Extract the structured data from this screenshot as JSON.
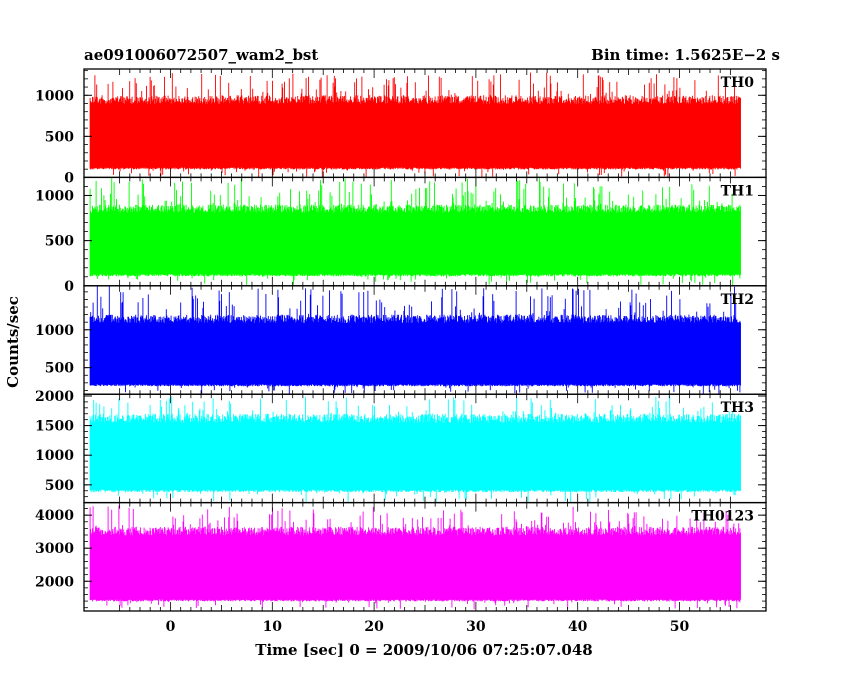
{
  "header": {
    "title": "ae091006072507_wam2_bst",
    "bin_time": "Bin time: 1.5625E−2 s"
  },
  "chart_data": {
    "type": "line",
    "xlabel": "Time [sec] 0 = 2009/10/06 07:25:07.048",
    "ylabel": "Counts/sec",
    "xlim": [
      -8.5,
      58.5
    ],
    "data_range_x": [
      -7.9,
      56.0
    ],
    "bin_time_s": 0.015625,
    "x_ticks": [
      0,
      10,
      20,
      30,
      40,
      50
    ],
    "grid": false,
    "panels": [
      {
        "name": "TH0",
        "color": "#ff0000",
        "ylim": [
          0,
          1320
        ],
        "y_ticks": [
          0,
          500,
          1000
        ],
        "typical_range": [
          120,
          1000
        ],
        "min_envelope": 0,
        "max_envelope": 1280
      },
      {
        "name": "TH1",
        "color": "#00ff00",
        "ylim": [
          0,
          1200
        ],
        "y_ticks": [
          0,
          500,
          1000
        ],
        "typical_range": [
          130,
          900
        ],
        "min_envelope": 0,
        "max_envelope": 1200
      },
      {
        "name": "TH2",
        "color": "#0000ff",
        "ylim": [
          150,
          1580
        ],
        "y_ticks": [
          500,
          1000
        ],
        "typical_range": [
          280,
          1200
        ],
        "min_envelope": 150,
        "max_envelope": 1580
      },
      {
        "name": "TH3",
        "color": "#00ffff",
        "ylim": [
          200,
          2030
        ],
        "y_ticks": [
          500,
          1000,
          1500,
          2000
        ],
        "typical_range": [
          420,
          1700
        ],
        "min_envelope": 200,
        "max_envelope": 2000
      },
      {
        "name": "TH0123",
        "color": "#ff00ff",
        "ylim": [
          1100,
          4380
        ],
        "y_ticks": [
          2000,
          3000,
          4000
        ],
        "typical_range": [
          1450,
          3650
        ],
        "min_envelope": 1150,
        "max_envelope": 4300
      }
    ]
  }
}
